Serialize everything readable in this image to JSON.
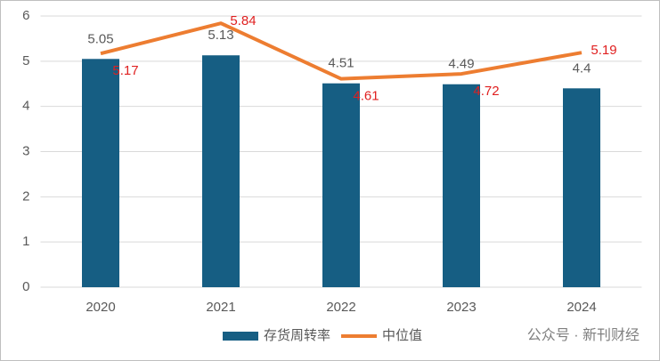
{
  "chart_data": {
    "type": "combo",
    "categories": [
      "2020",
      "2021",
      "2022",
      "2023",
      "2024"
    ],
    "series": [
      {
        "name": "存货周转率",
        "type": "bar",
        "color": "#165e83",
        "values": [
          5.05,
          5.13,
          4.51,
          4.49,
          4.4
        ]
      },
      {
        "name": "中位值",
        "type": "line",
        "color": "#ed7d31",
        "values": [
          5.17,
          5.84,
          4.61,
          4.72,
          5.19
        ]
      }
    ],
    "ylim": [
      0,
      6
    ],
    "yticks": [
      0,
      1,
      2,
      3,
      4,
      5,
      6
    ],
    "grid": true,
    "legend": "bottom",
    "watermark": "公众号 · 新刊财经"
  }
}
